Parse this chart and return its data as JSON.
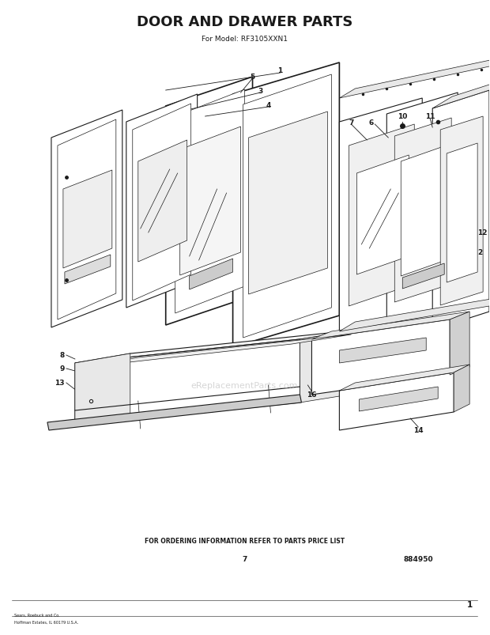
{
  "title": "DOOR AND DRAWER PARTS",
  "subtitle": "For Model: RF3105XXN1",
  "footer_line1": "FOR ORDERING INFORMATION REFER TO PARTS PRICE LIST",
  "footer_page": "7",
  "footer_code": "884950",
  "bg_color": "#ffffff",
  "line_color": "#1a1a1a",
  "title_fontsize": 13,
  "subtitle_fontsize": 6.5,
  "footer_fontsize": 5.5,
  "page_number": "1",
  "watermark": "eReplacementParts.com"
}
